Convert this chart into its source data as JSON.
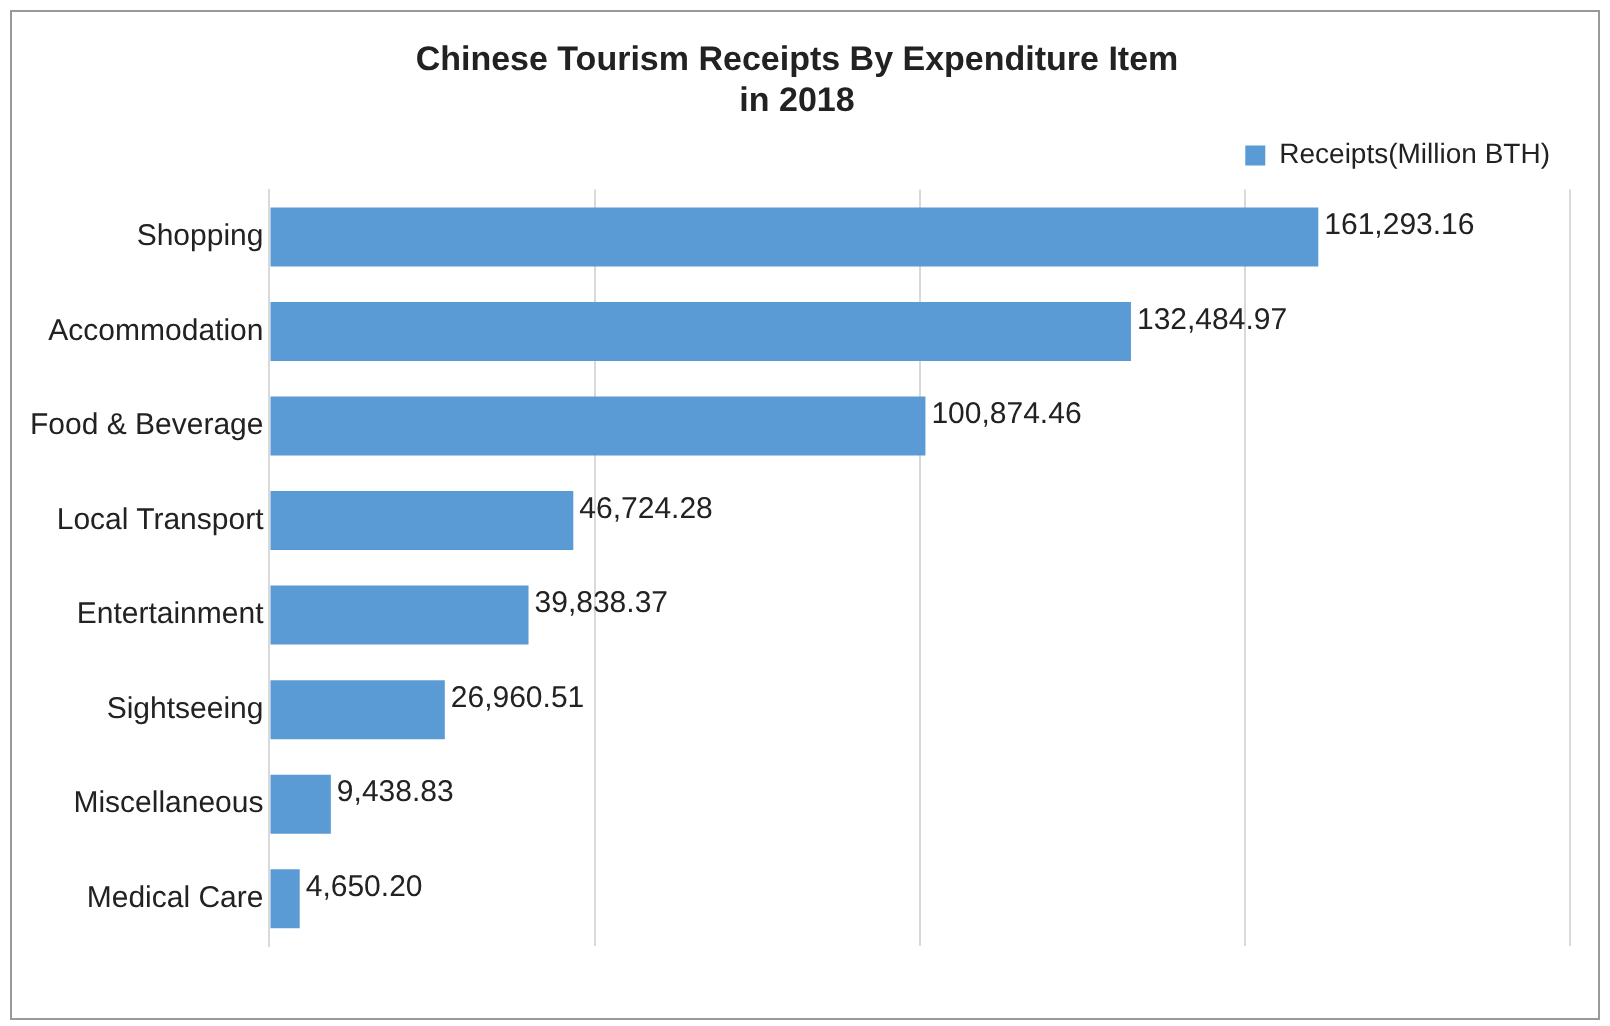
{
  "chart_data": {
    "type": "bar",
    "orientation": "horizontal",
    "title": "Chinese Tourism Receipts By Expenditure Item\nin 2018",
    "categories": [
      "Shopping",
      "Accommodation",
      "Food & Beverage",
      "Local Transport",
      "Entertainment",
      "Sightseeing",
      "Miscellaneous",
      "Medical Care"
    ],
    "series": [
      {
        "name": "Receipts(Million BTH)",
        "color": "#5b9bd5",
        "values": [
          161293.16,
          132484.97,
          100874.46,
          46724.28,
          39838.37,
          26960.51,
          9438.83,
          4650.2
        ],
        "value_labels": [
          "161,293.16",
          "132,484.97",
          "100,874.46",
          "46,724.28",
          "39,838.37",
          "26,960.51",
          "9,438.83",
          "4,650.20"
        ]
      }
    ],
    "xlim": [
      0,
      200000
    ],
    "xticks": [
      {
        "value": 0,
        "label": null
      },
      {
        "value": 50000,
        "label": null
      },
      {
        "value": 100000,
        "label": null
      },
      {
        "value": 150000,
        "label": null
      },
      {
        "value": 200000,
        "label": null
      }
    ],
    "grid": "x",
    "legend": "top right",
    "tick_labels": "y"
  }
}
